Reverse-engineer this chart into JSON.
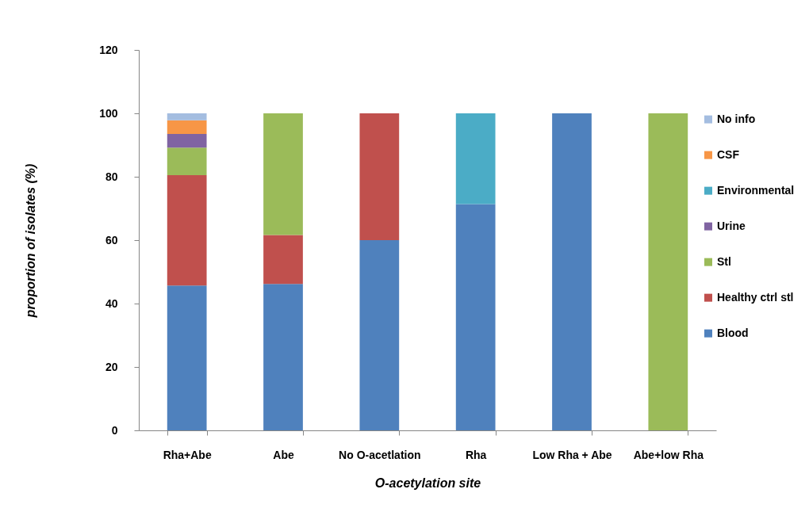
{
  "chart_data": {
    "type": "bar",
    "xlabel": "O-acetylation site",
    "ylabel": "proportion of isolates (%)",
    "categories": [
      "Rha+Abe",
      "Abe",
      "No O-acetlation",
      "Rha",
      "Low Rha + Abe",
      "Abe+low Rha"
    ],
    "series": [
      {
        "name": "Blood",
        "color": "#4f81bd",
        "values": [
          45.7,
          46.2,
          60,
          71.4,
          100,
          null
        ]
      },
      {
        "name": "Healthy ctrl stl",
        "color": "#c0504d",
        "values": [
          34.8,
          15.4,
          40,
          null,
          null,
          null
        ]
      },
      {
        "name": "Stl",
        "color": "#9bbb59",
        "values": [
          8.7,
          38.4,
          null,
          null,
          null,
          100
        ]
      },
      {
        "name": "Urine",
        "color": "#8064a2",
        "values": [
          4.3,
          null,
          null,
          null,
          null,
          null
        ]
      },
      {
        "name": "Environmental",
        "color": "#4bacc6",
        "values": [
          null,
          null,
          null,
          28.6,
          null,
          null
        ]
      },
      {
        "name": "CSF",
        "color": "#f79646",
        "values": [
          4.3,
          null,
          null,
          null,
          null,
          null
        ]
      },
      {
        "name": "No info",
        "color": "#a4bde0",
        "values": [
          2.2,
          null,
          null,
          null,
          null,
          null
        ]
      }
    ],
    "stacked": true,
    "ylim": [
      0,
      120
    ],
    "yticks": [
      0,
      20,
      40,
      60,
      80,
      100,
      120
    ],
    "grid": false,
    "legend": "right"
  }
}
